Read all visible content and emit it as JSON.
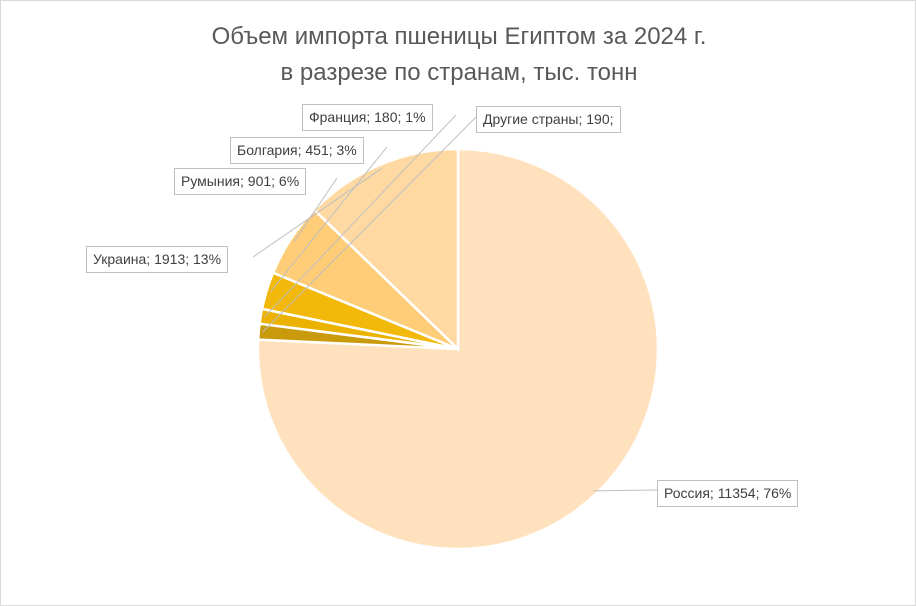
{
  "chart_data": {
    "type": "pie",
    "title": "Объем импорта пшеницы Египтом за 2024 г.",
    "subtitle": "в разрезе по странам, тыс. тонн",
    "slices": [
      {
        "name": "Россия",
        "value": 11354,
        "percent": "76%",
        "label": "Россия; 11354; 76%",
        "color": "#FFE2BD"
      },
      {
        "name": "Другие страны",
        "value": 190,
        "percent": "1%",
        "label": "Другие страны; 190;",
        "color": "#C89A0C"
      },
      {
        "name": "Франция",
        "value": 180,
        "percent": "1%",
        "label": "Франция; 180; 1%",
        "color": "#EBB200"
      },
      {
        "name": "Болгария",
        "value": 451,
        "percent": "3%",
        "label": "Болгария; 451; 3%",
        "color": "#F2B90A"
      },
      {
        "name": "Румыния",
        "value": 901,
        "percent": "6%",
        "label": "Румыния; 901; 6%",
        "color": "#FFCC77"
      },
      {
        "name": "Украина",
        "value": 1913,
        "percent": "13%",
        "label": "Украина; 1913; 13%",
        "color": "#FFD9A2"
      }
    ]
  }
}
